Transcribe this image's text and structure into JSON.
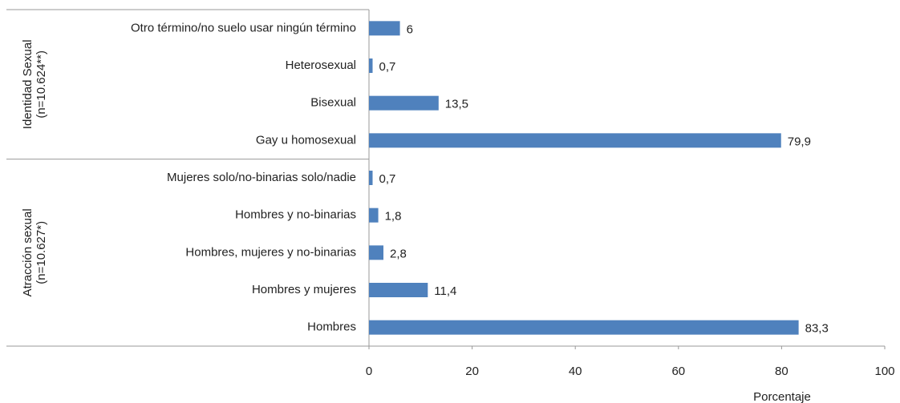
{
  "chart_data": {
    "type": "bar",
    "orientation": "horizontal",
    "color": "#4f81bd",
    "x_label": "Porcentaje",
    "xlim": [
      0,
      100
    ],
    "xticks": [
      0,
      20,
      40,
      60,
      80,
      100
    ],
    "groups": [
      {
        "name": "Identidad Sexual",
        "note": "(n=10.624**)",
        "categories": [
          "Otro término/no suelo usar ningún término",
          "Heterosexual",
          "Bisexual",
          "Gay u homosexual"
        ],
        "values": [
          6,
          0.7,
          13.5,
          79.9
        ],
        "value_labels": [
          "6",
          "0,7",
          "13,5",
          "79,9"
        ]
      },
      {
        "name": "Atracción sexual",
        "note": "(n=10.627*)",
        "categories": [
          "Mujeres solo/no-binarias solo/nadie",
          "Hombres y no-binarias",
          "Hombres, mujeres y no-binarias",
          "Hombres y mujeres",
          "Hombres"
        ],
        "values": [
          0.7,
          1.8,
          2.8,
          11.4,
          83.3
        ],
        "value_labels": [
          "0,7",
          "1,8",
          "2,8",
          "11,4",
          "83,3"
        ]
      }
    ]
  }
}
